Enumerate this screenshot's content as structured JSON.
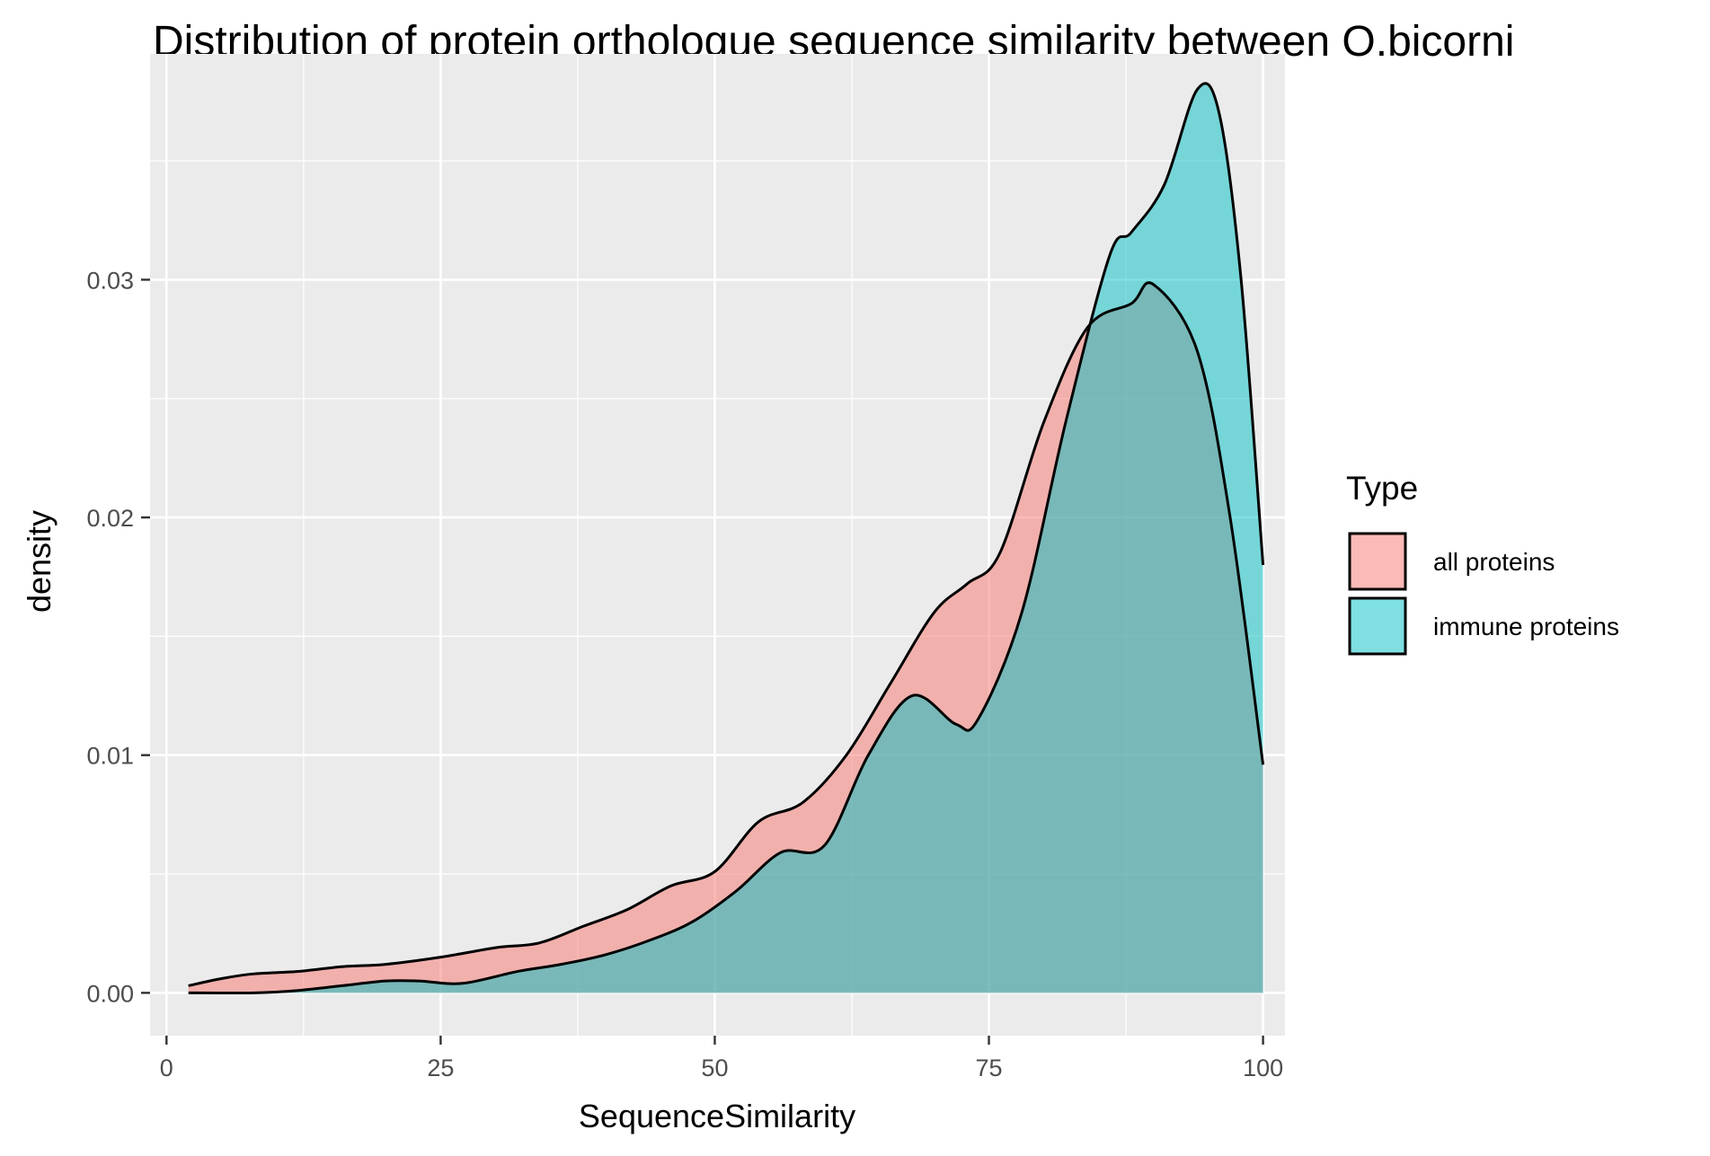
{
  "chart_data": {
    "type": "area",
    "title": "Distribution of protein orthologue sequence similarity between O.bicorni",
    "xlabel": "SequenceSimilarity",
    "ylabel": "density",
    "xlim": [
      -1.5,
      102
    ],
    "ylim": [
      -0.0018,
      0.0395
    ],
    "x_ticks": [
      0,
      25,
      50,
      75,
      100
    ],
    "y_ticks": [
      0.0,
      0.01,
      0.02,
      0.03
    ],
    "x_tick_labels": [
      "0",
      "25",
      "50",
      "75",
      "100"
    ],
    "y_tick_labels": [
      "0.00",
      "0.01",
      "0.02",
      "0.03"
    ],
    "grid": true,
    "panel_background": "#ebebeb",
    "legend": {
      "title": "Type",
      "position": "right"
    },
    "series": [
      {
        "name": "all proteins",
        "color": "#f8766d",
        "x": [
          2,
          5,
          8,
          12,
          16,
          20,
          25,
          30,
          34,
          38,
          42,
          46,
          50,
          54,
          58,
          62,
          66,
          70,
          73,
          76,
          80,
          84,
          88,
          90,
          94,
          97,
          100
        ],
        "y": [
          0.0003,
          0.0006,
          0.0008,
          0.0009,
          0.0011,
          0.0012,
          0.0015,
          0.0019,
          0.0021,
          0.0028,
          0.0035,
          0.0045,
          0.0051,
          0.0072,
          0.008,
          0.01,
          0.013,
          0.016,
          0.0172,
          0.0185,
          0.024,
          0.028,
          0.029,
          0.0298,
          0.027,
          0.02,
          0.0096
        ]
      },
      {
        "name": "immune proteins",
        "color": "#00bfc4",
        "x": [
          2,
          8,
          12,
          16,
          20,
          23,
          27,
          32,
          36,
          40,
          44,
          48,
          52,
          56,
          60,
          64,
          68,
          72,
          74,
          78,
          82,
          86,
          88,
          91,
          94,
          96,
          98,
          100
        ],
        "y": [
          0.0,
          0.0,
          0.0001,
          0.0003,
          0.0005,
          0.0005,
          0.0004,
          0.0009,
          0.0012,
          0.0016,
          0.0022,
          0.003,
          0.0043,
          0.0059,
          0.0062,
          0.01,
          0.0125,
          0.0113,
          0.0115,
          0.016,
          0.024,
          0.031,
          0.032,
          0.034,
          0.038,
          0.037,
          0.03,
          0.018
        ]
      }
    ]
  }
}
